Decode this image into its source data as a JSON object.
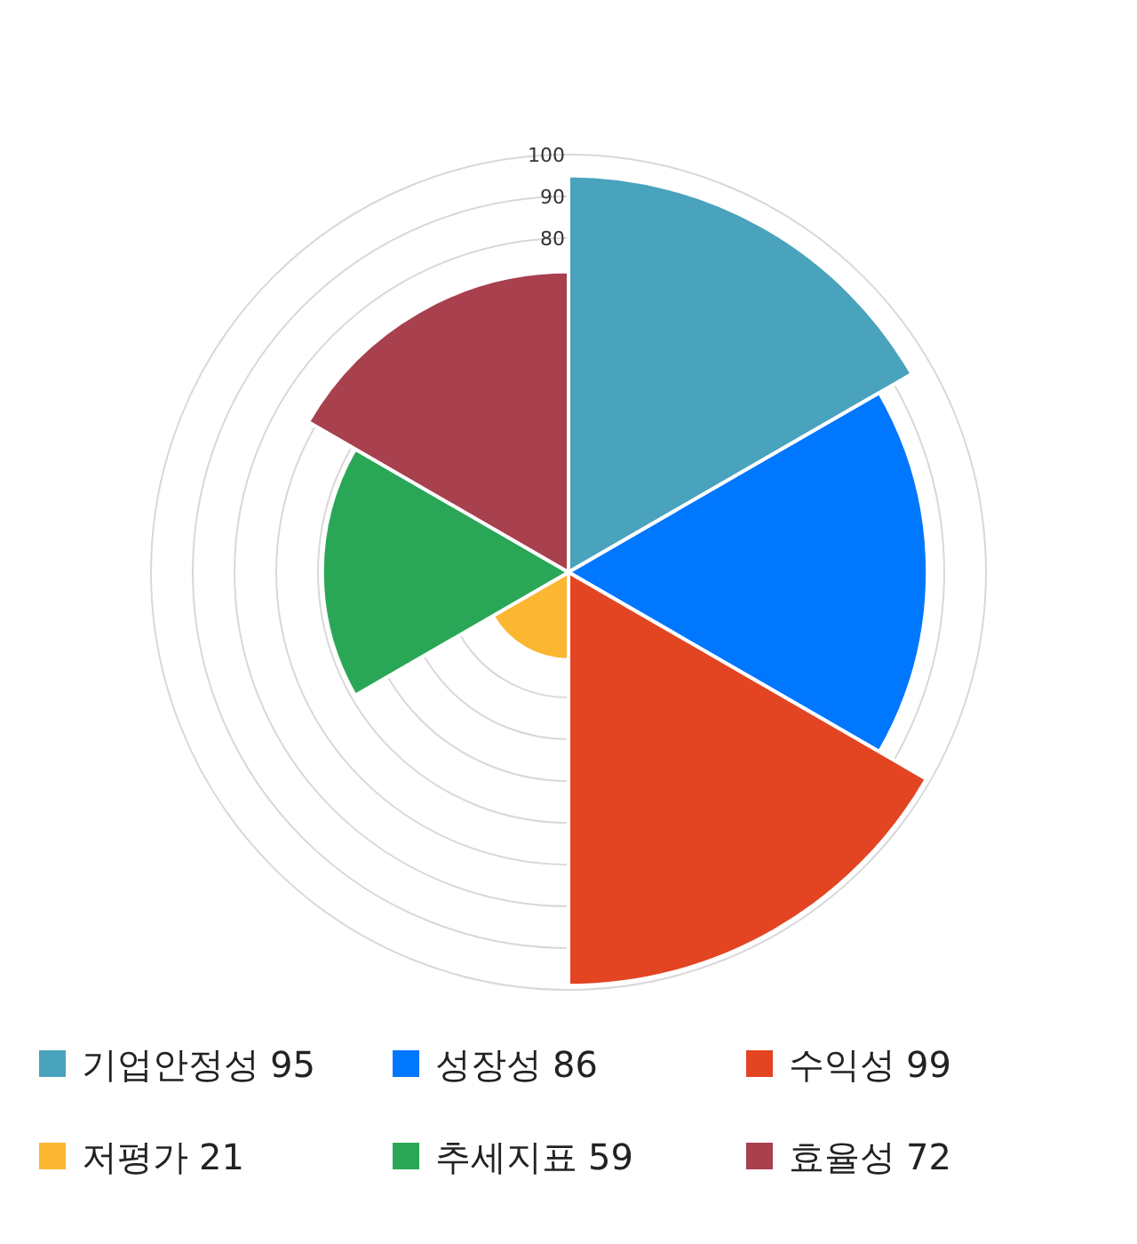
{
  "chart_data": {
    "type": "other",
    "categories": [
      "기업안정성",
      "성장성",
      "수익성",
      "저평가",
      "추세지표",
      "효율성"
    ],
    "values": [
      95,
      86,
      99,
      21,
      59,
      72
    ],
    "value_labels": [
      "95",
      "86",
      "99",
      "21",
      "59",
      "72"
    ],
    "colors": [
      "#4aa3bc",
      "#0077ff",
      "#e34522",
      "#fbb731",
      "#2aa756",
      "#a8404e"
    ],
    "annotations": [
      "100",
      "90",
      "80"
    ]
  }
}
